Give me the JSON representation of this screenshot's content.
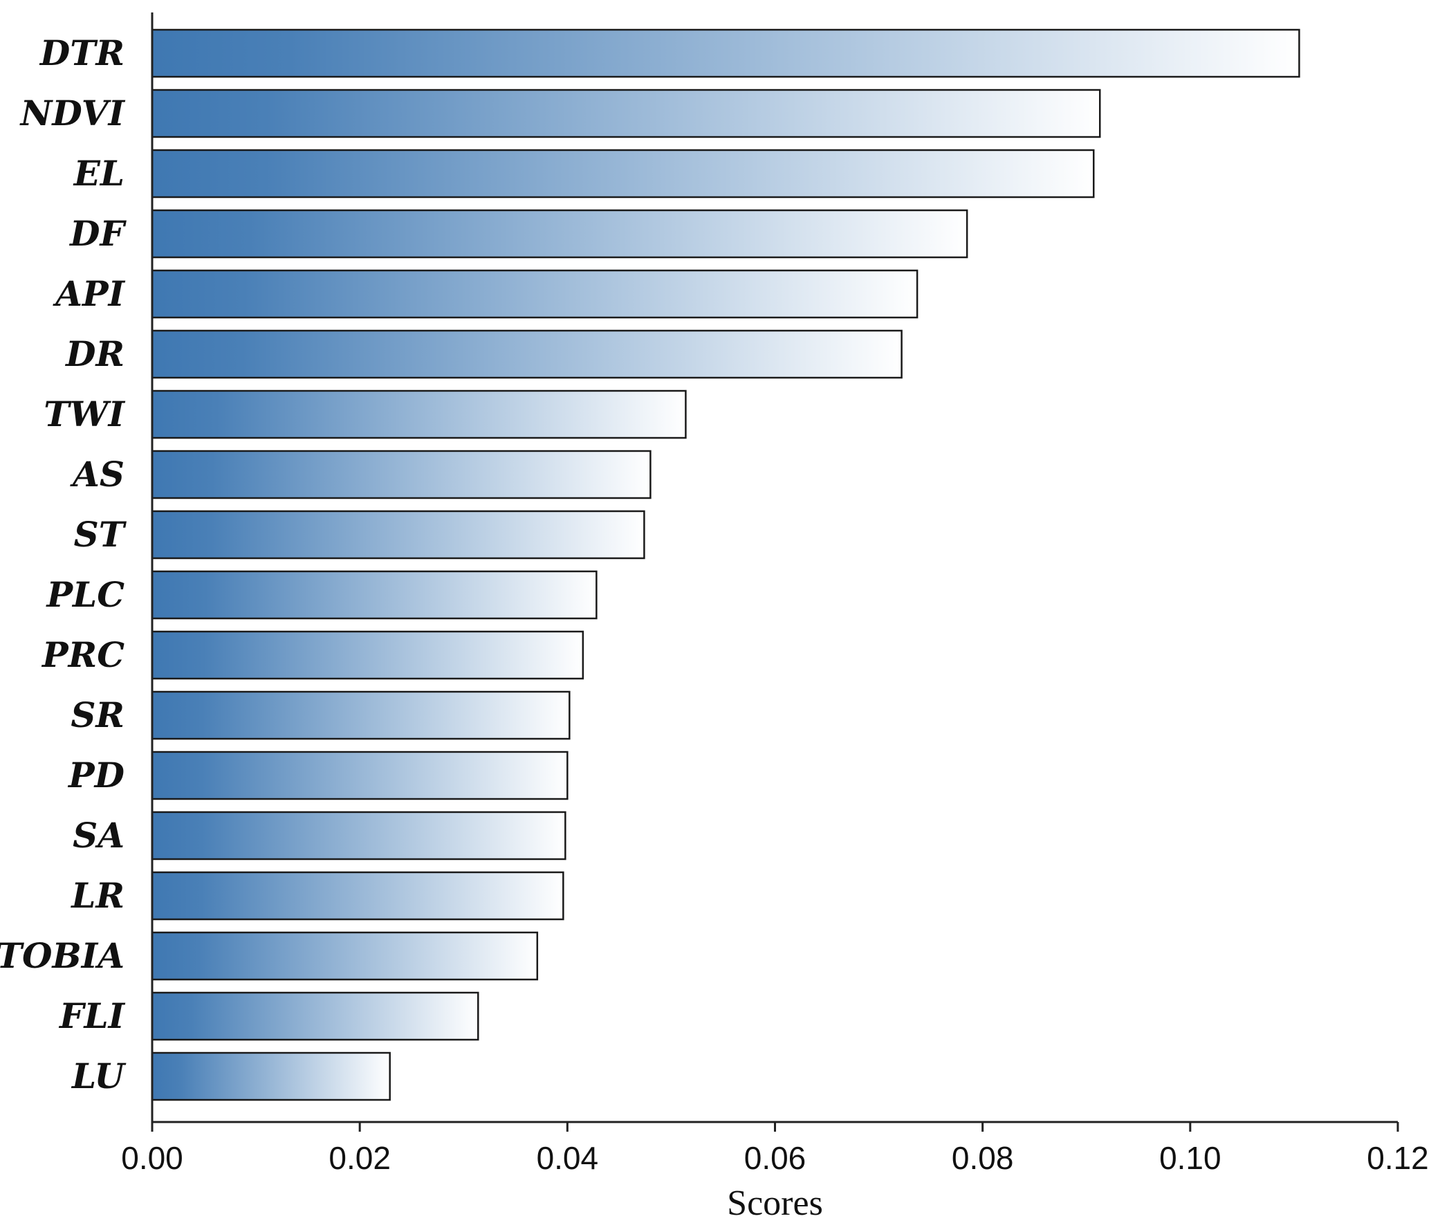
{
  "chart_data": {
    "type": "bar",
    "orientation": "horizontal",
    "categories": [
      "DTR",
      "NDVI",
      "EL",
      "DF",
      "API",
      "DR",
      "TWI",
      "AS",
      "ST",
      "PLC",
      "PRC",
      "SR",
      "PD",
      "SA",
      "LR",
      "TOBIA",
      "FLI",
      "LU"
    ],
    "values": [
      0.1105,
      0.0913,
      0.0907,
      0.0785,
      0.0737,
      0.0722,
      0.0514,
      0.048,
      0.0474,
      0.0428,
      0.0415,
      0.0402,
      0.04,
      0.0398,
      0.0396,
      0.0371,
      0.0314,
      0.0229
    ],
    "xlabel": "Scores",
    "ylabel": "",
    "xlim": [
      0,
      0.12
    ],
    "xticks": [
      "0.00",
      "0.02",
      "0.04",
      "0.06",
      "0.08",
      "0.10",
      "0.12"
    ],
    "grid": false,
    "legend": "none",
    "colors": {
      "bar_start": "#3f78b2",
      "bar_end": "#ffffff",
      "outline": "#1a1a1a"
    }
  }
}
